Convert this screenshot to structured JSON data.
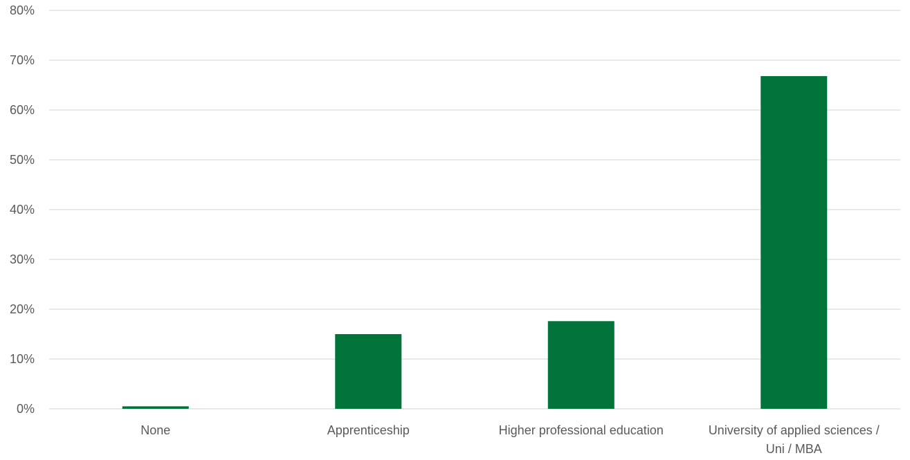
{
  "chart_data": {
    "type": "bar",
    "categories": [
      [
        "None"
      ],
      [
        "Apprenticeship"
      ],
      [
        "Higher professional education"
      ],
      [
        "University of applied sciences /",
        "Uni / MBA"
      ]
    ],
    "values": [
      0.5,
      15,
      17.6,
      66.8
    ],
    "title": "",
    "xlabel": "",
    "ylabel": "",
    "ylim": [
      0,
      80
    ],
    "yticks": [
      0,
      10,
      20,
      30,
      40,
      50,
      60,
      70,
      80
    ],
    "ytick_suffix": "%",
    "grid": true,
    "legend": "none",
    "bar_color": "#00743a",
    "grid_color": "#d9d9d9",
    "text_color": "#595959"
  }
}
